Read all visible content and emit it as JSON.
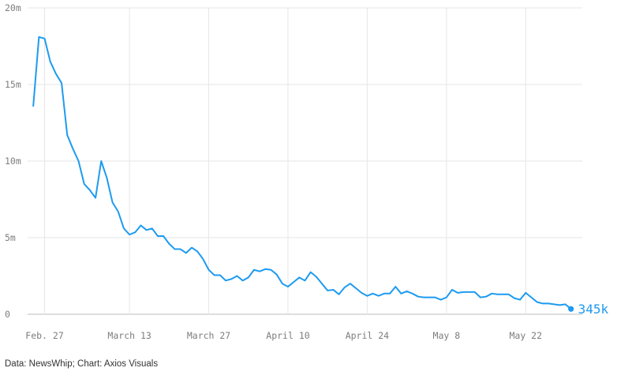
{
  "chart_data": {
    "type": "line",
    "title": "",
    "xlabel": "",
    "ylabel": "",
    "ylim": [
      0,
      20000000
    ],
    "y_ticks": [
      {
        "value": 0,
        "label": "0"
      },
      {
        "value": 5000000,
        "label": "5m"
      },
      {
        "value": 10000000,
        "label": "10m"
      },
      {
        "value": 15000000,
        "label": "15m"
      },
      {
        "value": 20000000,
        "label": "20m"
      }
    ],
    "xlim": [
      "2020-02-24",
      "2020-06-01"
    ],
    "x_ticks": [
      {
        "date": "2020-02-27",
        "label": "Feb. 27"
      },
      {
        "date": "2020-03-13",
        "label": "March 13"
      },
      {
        "date": "2020-03-27",
        "label": "March 27"
      },
      {
        "date": "2020-04-10",
        "label": "April 10"
      },
      {
        "date": "2020-04-24",
        "label": "April 24"
      },
      {
        "date": "2020-05-08",
        "label": "May 8"
      },
      {
        "date": "2020-05-22",
        "label": "May 22"
      }
    ],
    "grid": true,
    "series": [
      {
        "color": "#1d9bf0",
        "points": [
          [
            "2020-02-25",
            13600000
          ],
          [
            "2020-02-26",
            18100000
          ],
          [
            "2020-02-27",
            18000000
          ],
          [
            "2020-02-28",
            16500000
          ],
          [
            "2020-02-29",
            15700000
          ],
          [
            "2020-03-01",
            15100000
          ],
          [
            "2020-03-02",
            11700000
          ],
          [
            "2020-03-03",
            10800000
          ],
          [
            "2020-03-04",
            10000000
          ],
          [
            "2020-03-05",
            8500000
          ],
          [
            "2020-03-06",
            8100000
          ],
          [
            "2020-03-07",
            7600000
          ],
          [
            "2020-03-08",
            10000000
          ],
          [
            "2020-03-09",
            8900000
          ],
          [
            "2020-03-10",
            7300000
          ],
          [
            "2020-03-11",
            6700000
          ],
          [
            "2020-03-12",
            5600000
          ],
          [
            "2020-03-13",
            5200000
          ],
          [
            "2020-03-14",
            5350000
          ],
          [
            "2020-03-15",
            5800000
          ],
          [
            "2020-03-16",
            5500000
          ],
          [
            "2020-03-17",
            5600000
          ],
          [
            "2020-03-18",
            5100000
          ],
          [
            "2020-03-19",
            5100000
          ],
          [
            "2020-03-20",
            4600000
          ],
          [
            "2020-03-21",
            4250000
          ],
          [
            "2020-03-22",
            4250000
          ],
          [
            "2020-03-23",
            4000000
          ],
          [
            "2020-03-24",
            4350000
          ],
          [
            "2020-03-25",
            4100000
          ],
          [
            "2020-03-26",
            3600000
          ],
          [
            "2020-03-27",
            2900000
          ],
          [
            "2020-03-28",
            2550000
          ],
          [
            "2020-03-29",
            2550000
          ],
          [
            "2020-03-30",
            2200000
          ],
          [
            "2020-03-31",
            2300000
          ],
          [
            "2020-04-01",
            2500000
          ],
          [
            "2020-04-02",
            2200000
          ],
          [
            "2020-04-03",
            2400000
          ],
          [
            "2020-04-04",
            2900000
          ],
          [
            "2020-04-05",
            2800000
          ],
          [
            "2020-04-06",
            2950000
          ],
          [
            "2020-04-07",
            2900000
          ],
          [
            "2020-04-08",
            2600000
          ],
          [
            "2020-04-09",
            2000000
          ],
          [
            "2020-04-10",
            1800000
          ],
          [
            "2020-04-11",
            2100000
          ],
          [
            "2020-04-12",
            2400000
          ],
          [
            "2020-04-13",
            2200000
          ],
          [
            "2020-04-14",
            2750000
          ],
          [
            "2020-04-15",
            2450000
          ],
          [
            "2020-04-16",
            2000000
          ],
          [
            "2020-04-17",
            1550000
          ],
          [
            "2020-04-18",
            1600000
          ],
          [
            "2020-04-19",
            1300000
          ],
          [
            "2020-04-20",
            1750000
          ],
          [
            "2020-04-21",
            2000000
          ],
          [
            "2020-04-22",
            1700000
          ],
          [
            "2020-04-23",
            1400000
          ],
          [
            "2020-04-24",
            1200000
          ],
          [
            "2020-04-25",
            1350000
          ],
          [
            "2020-04-26",
            1200000
          ],
          [
            "2020-04-27",
            1350000
          ],
          [
            "2020-04-28",
            1350000
          ],
          [
            "2020-04-29",
            1800000
          ],
          [
            "2020-04-30",
            1350000
          ],
          [
            "2020-05-01",
            1500000
          ],
          [
            "2020-05-02",
            1350000
          ],
          [
            "2020-05-03",
            1150000
          ],
          [
            "2020-05-04",
            1100000
          ],
          [
            "2020-05-05",
            1100000
          ],
          [
            "2020-05-06",
            1100000
          ],
          [
            "2020-05-07",
            950000
          ],
          [
            "2020-05-08",
            1100000
          ],
          [
            "2020-05-09",
            1600000
          ],
          [
            "2020-05-10",
            1400000
          ],
          [
            "2020-05-11",
            1450000
          ],
          [
            "2020-05-12",
            1450000
          ],
          [
            "2020-05-13",
            1450000
          ],
          [
            "2020-05-14",
            1100000
          ],
          [
            "2020-05-15",
            1150000
          ],
          [
            "2020-05-16",
            1350000
          ],
          [
            "2020-05-17",
            1300000
          ],
          [
            "2020-05-18",
            1300000
          ],
          [
            "2020-05-19",
            1300000
          ],
          [
            "2020-05-20",
            1050000
          ],
          [
            "2020-05-21",
            950000
          ],
          [
            "2020-05-22",
            1400000
          ],
          [
            "2020-05-23",
            1100000
          ],
          [
            "2020-05-24",
            800000
          ],
          [
            "2020-05-25",
            700000
          ],
          [
            "2020-05-26",
            700000
          ],
          [
            "2020-05-27",
            650000
          ],
          [
            "2020-05-28",
            600000
          ],
          [
            "2020-05-29",
            650000
          ],
          [
            "2020-05-30",
            345000
          ]
        ]
      }
    ],
    "end_label": "345k"
  },
  "source_note": "Data: NewsWhip; Chart: Axios Visuals",
  "colors": {
    "line": "#1d9bf0",
    "grid": "#e6e6e6",
    "tick_text": "#7d7d7d",
    "zero_line": "#bdbdbd"
  }
}
